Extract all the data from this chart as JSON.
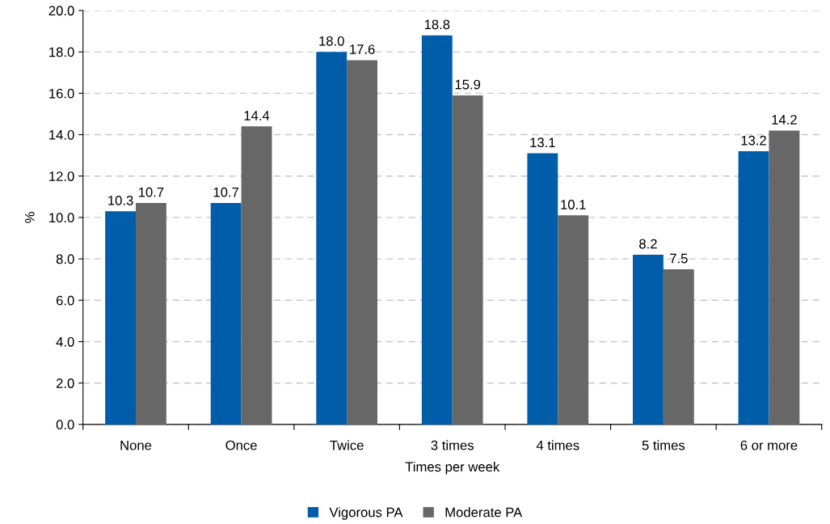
{
  "chart_data": {
    "type": "bar",
    "xlabel": "Times per week",
    "ylabel": "%",
    "categories": [
      "None",
      "Once",
      "Twice",
      "3 times",
      "4 times",
      "5 times",
      "6 or more"
    ],
    "series": [
      {
        "name": "Vigorous PA",
        "color": "#005daa",
        "values": [
          10.3,
          10.7,
          18.0,
          18.8,
          13.1,
          8.2,
          13.2
        ],
        "value_labels": [
          "10.3",
          "10.7",
          "18.0",
          "18.8",
          "13.1",
          "8.2",
          "13.2"
        ]
      },
      {
        "name": "Moderate PA",
        "color": "#676767",
        "values": [
          10.7,
          14.4,
          17.6,
          15.9,
          10.1,
          7.5,
          14.2
        ],
        "value_labels": [
          "10.7",
          "14.4",
          "17.6",
          "15.9",
          "10.1",
          "7.5",
          "14.2"
        ]
      }
    ],
    "ylim": [
      0,
      20
    ],
    "yticks": [
      {
        "value": 0,
        "label": "0.0"
      },
      {
        "value": 2,
        "label": "2.0"
      },
      {
        "value": 4,
        "label": "4.0"
      },
      {
        "value": 6,
        "label": "6.0"
      },
      {
        "value": 8,
        "label": "8.0"
      },
      {
        "value": 10,
        "label": "10.0"
      },
      {
        "value": 12,
        "label": "12.0"
      },
      {
        "value": 14,
        "label": "14.0"
      },
      {
        "value": 16,
        "label": "16.0"
      },
      {
        "value": 18,
        "label": "18.0"
      },
      {
        "value": 20,
        "label": "20.0"
      }
    ],
    "grid": "y",
    "legend": "bottom"
  }
}
